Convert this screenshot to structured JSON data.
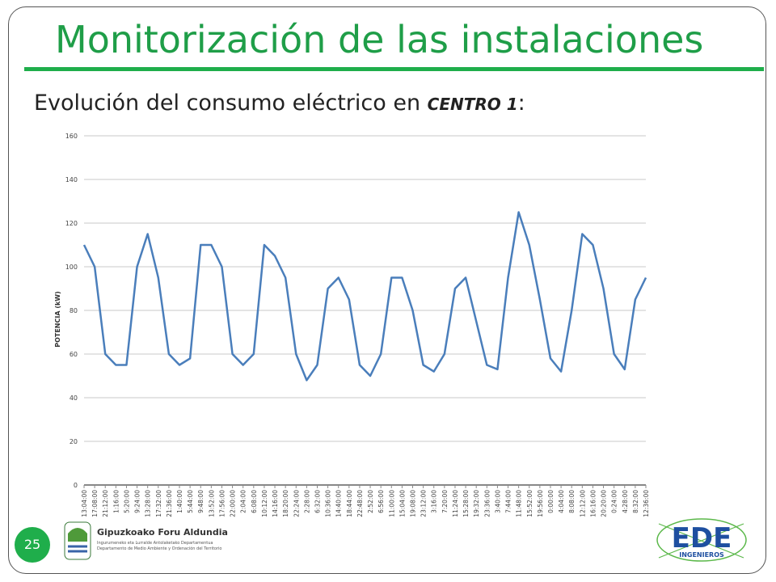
{
  "slide": {
    "title": "Monitorización de las instalaciones",
    "subtitle": "Evolución del consumo eléctrico en",
    "subtitle_emphasis": "CENTRO 1",
    "subtitle_end": ":",
    "page_number": "25",
    "logo_left": {
      "name": "Gipuzkoako Foru Aldundia",
      "line1": "Ingurumeneko eta Lurralde Antolaketako Departamentua",
      "line2": "Departamento de Medio Ambiente y Ordenación del Territorio"
    },
    "logo_right": {
      "name": "EDE",
      "sub": "INGENIEROS"
    }
  },
  "chart_data": {
    "type": "line",
    "y_label": "POTENCIA (kW)",
    "categories": [
      "13:04:00",
      "17:08:00",
      "21:12:00",
      "1:16:00",
      "5:20:00",
      "9:24:00",
      "13:28:00",
      "17:32:00",
      "21:36:00",
      "1:40:00",
      "5:44:00",
      "9:48:00",
      "13:52:00",
      "17:56:00",
      "22:00:00",
      "2:04:00",
      "6:08:00",
      "10:12:00",
      "14:16:00",
      "18:20:00",
      "22:24:00",
      "2:28:00",
      "6:32:00",
      "10:36:00",
      "14:40:00",
      "18:44:00",
      "22:48:00",
      "2:52:00",
      "6:56:00",
      "11:00:00",
      "15:04:00",
      "19:08:00",
      "23:12:00",
      "3:16:00",
      "7:20:00",
      "11:24:00",
      "15:28:00",
      "19:32:00",
      "23:36:00",
      "3:40:00",
      "7:44:00",
      "11:48:00",
      "15:52:00",
      "19:56:00",
      "0:00:00",
      "4:04:00",
      "8:08:00",
      "12:12:00",
      "16:16:00",
      "20:20:00",
      "0:24:00",
      "4:28:00",
      "8:32:00",
      "12:36:00"
    ],
    "values": [
      110,
      100,
      60,
      55,
      55,
      100,
      115,
      95,
      60,
      55,
      58,
      110,
      110,
      100,
      60,
      55,
      60,
      110,
      105,
      95,
      60,
      48,
      55,
      90,
      95,
      85,
      55,
      50,
      60,
      95,
      95,
      80,
      55,
      52,
      60,
      90,
      95,
      75,
      55,
      53,
      95,
      125,
      110,
      85,
      58,
      52,
      80,
      115,
      110,
      90,
      60,
      53,
      85,
      95
    ],
    "color": "#4a7ebb",
    "ylim": [
      0,
      160
    ],
    "yticks": [
      0,
      20,
      40,
      60,
      80,
      100,
      120,
      140,
      160
    ],
    "grid": true
  }
}
